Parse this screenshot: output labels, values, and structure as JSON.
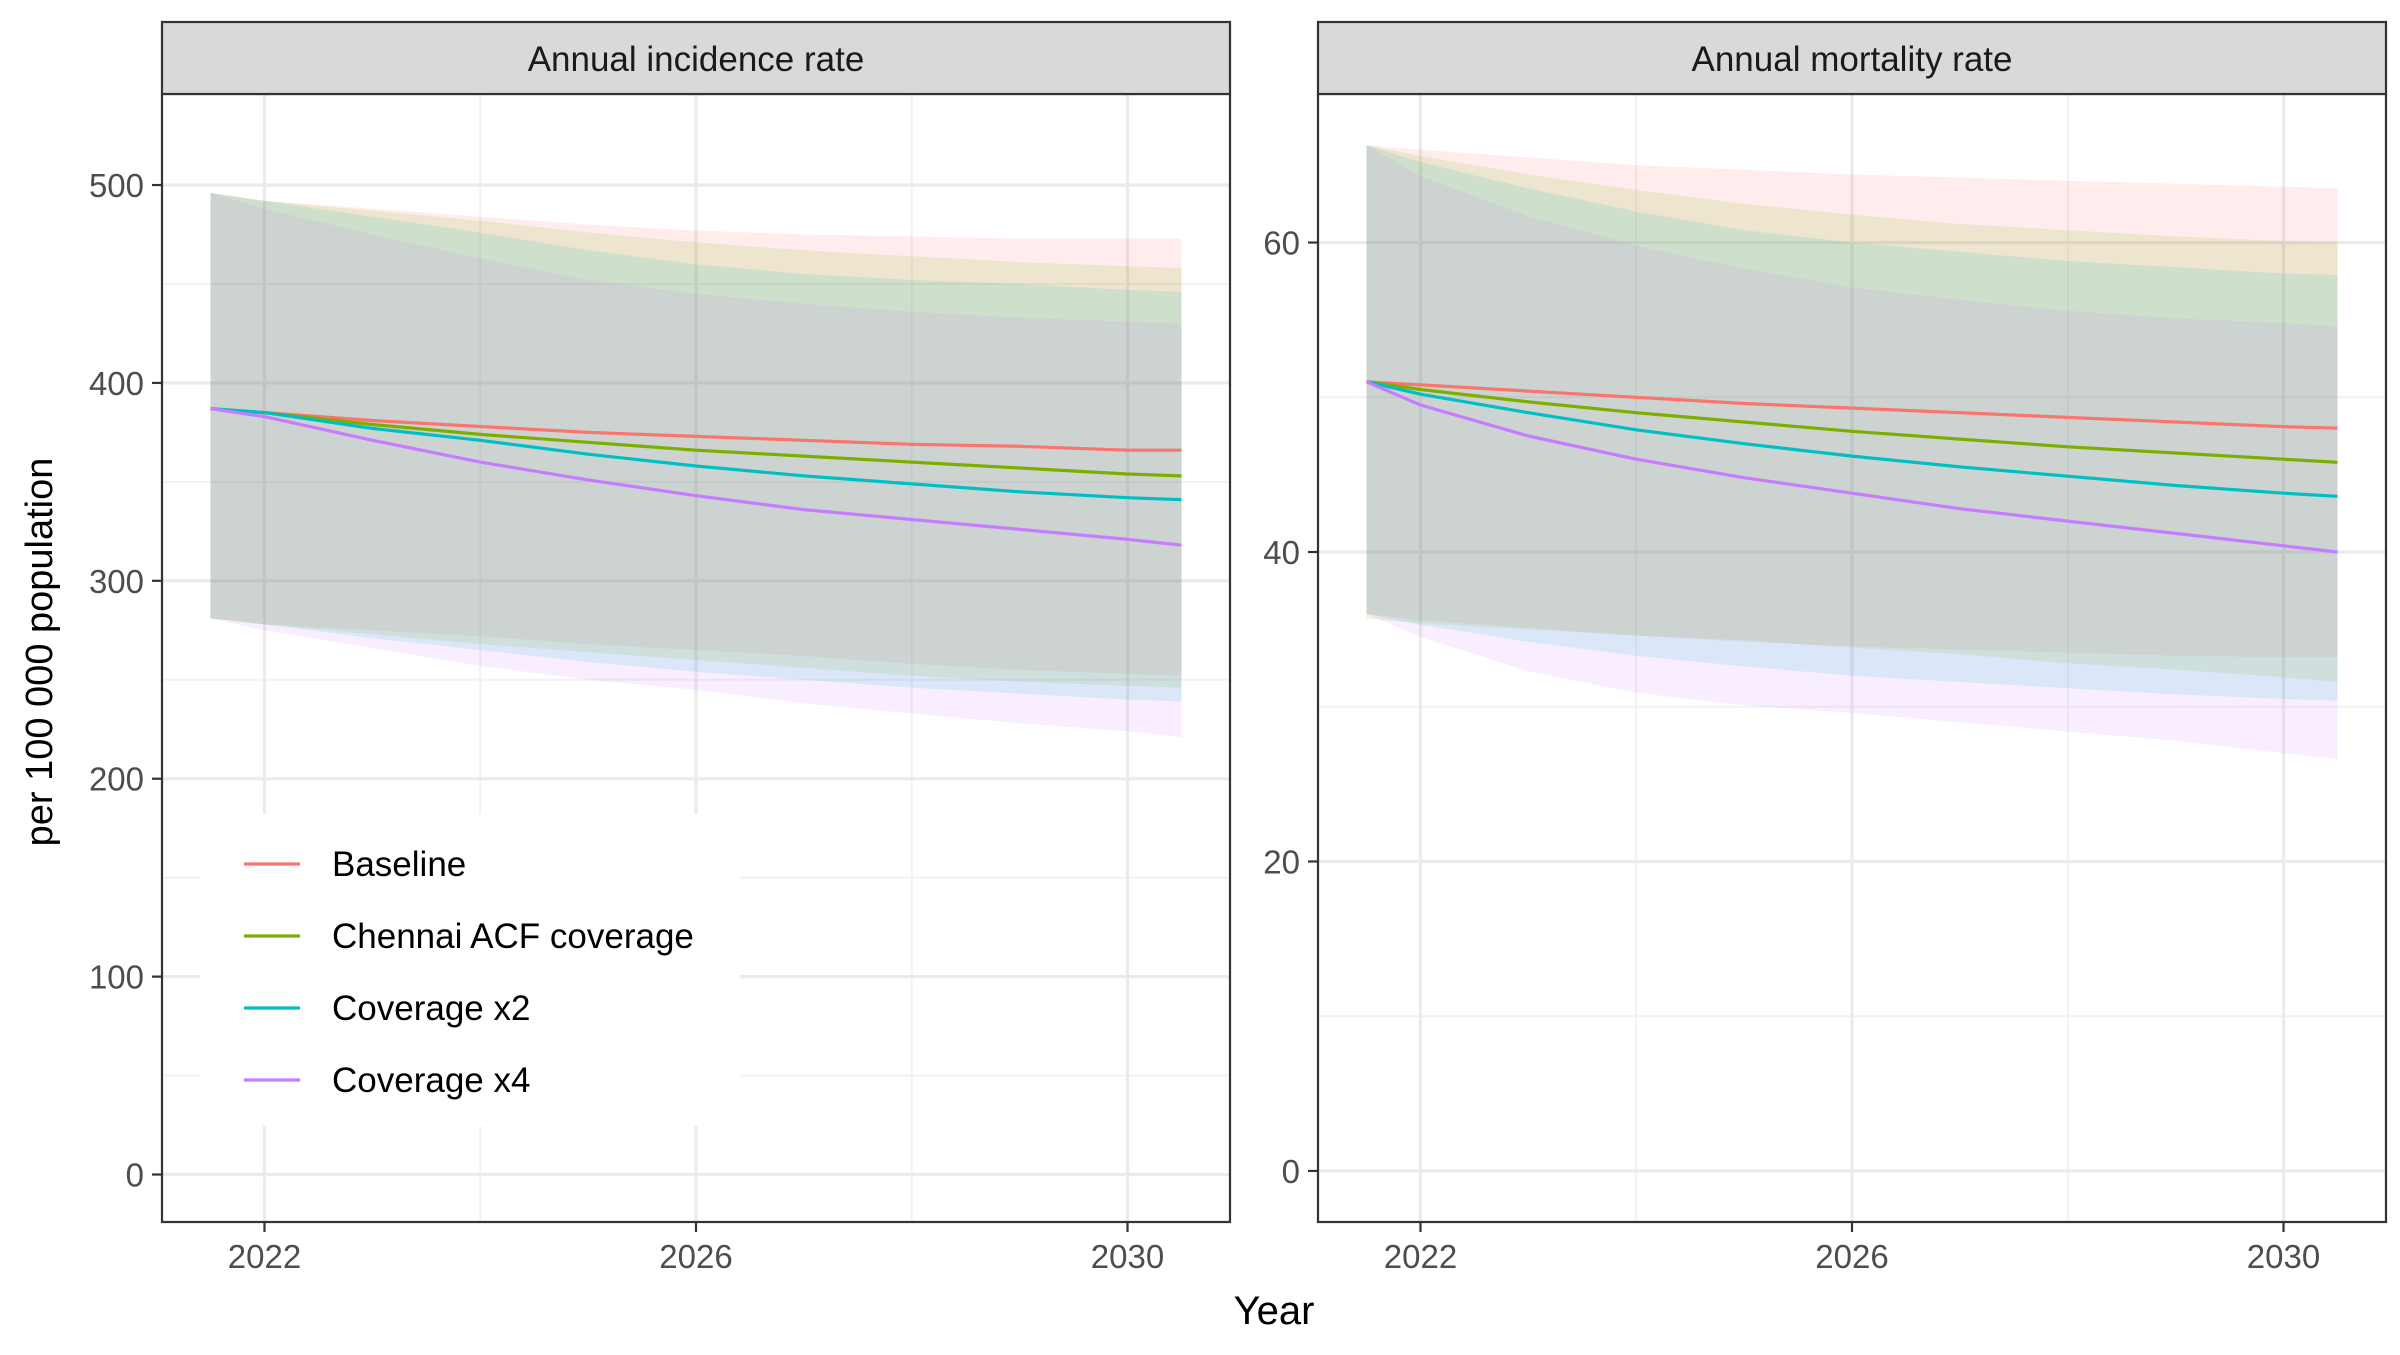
{
  "ylabel": "per 100 000 population",
  "xlabel": "Year",
  "chart_data": [
    {
      "type": "area",
      "title": "Annual incidence rate",
      "xticks": [
        2022,
        2026,
        2030
      ],
      "yticks": [
        0,
        100,
        200,
        300,
        400,
        500
      ],
      "xlim": [
        2021.05,
        2030.95
      ],
      "ylim": [
        -24,
        546
      ],
      "grid": true,
      "legend": "bottom-left, inside",
      "x": [
        2021.5,
        2022,
        2023,
        2024,
        2025,
        2026,
        2027,
        2028,
        2029,
        2030,
        2030.5
      ],
      "series": [
        {
          "name": "Baseline",
          "color": "#F8766D",
          "values": [
            387,
            385,
            381,
            378,
            375,
            373,
            371,
            369,
            368,
            366,
            366
          ],
          "upper": [
            496,
            492,
            488,
            484,
            480,
            477,
            475,
            474,
            473,
            473,
            473
          ],
          "lower": [
            281,
            278,
            275,
            272,
            268,
            265,
            262,
            258,
            255,
            253,
            252
          ]
        },
        {
          "name": "Chennai ACF coverage",
          "color": "#7CAE00",
          "values": [
            387,
            385,
            379,
            374,
            370,
            366,
            363,
            360,
            357,
            354,
            353
          ],
          "upper": [
            496,
            492,
            487,
            482,
            476,
            471,
            467,
            464,
            461,
            459,
            458
          ],
          "lower": [
            281,
            278,
            273,
            268,
            264,
            260,
            256,
            252,
            249,
            247,
            246
          ]
        },
        {
          "name": "Coverage x2",
          "color": "#00BFC4",
          "values": [
            387,
            385,
            377,
            371,
            364,
            358,
            353,
            349,
            345,
            342,
            341
          ],
          "upper": [
            496,
            492,
            484,
            476,
            467,
            460,
            455,
            452,
            450,
            447,
            446
          ],
          "lower": [
            281,
            278,
            271,
            265,
            259,
            254,
            250,
            246,
            243,
            240,
            239
          ]
        },
        {
          "name": "Coverage x4",
          "color": "#C77CFF",
          "values": [
            387,
            383,
            371,
            360,
            351,
            343,
            336,
            331,
            326,
            321,
            318
          ],
          "upper": [
            496,
            488,
            475,
            463,
            452,
            445,
            440,
            436,
            433,
            431,
            430
          ],
          "lower": [
            281,
            275,
            266,
            257,
            250,
            245,
            238,
            233,
            228,
            224,
            221
          ]
        }
      ]
    },
    {
      "type": "area",
      "title": "Annual mortality rate",
      "xticks": [
        2022,
        2026,
        2030
      ],
      "yticks": [
        0,
        20,
        40,
        60
      ],
      "xlim": [
        2021.05,
        2030.95
      ],
      "ylim": [
        -3.3,
        69.6
      ],
      "grid": true,
      "legend": "none",
      "x": [
        2021.5,
        2022,
        2023,
        2024,
        2025,
        2026,
        2027,
        2028,
        2029,
        2030,
        2030.5
      ],
      "series": [
        {
          "name": "Baseline",
          "color": "#F8766D",
          "values": [
            51,
            50.8,
            50.4,
            50,
            49.6,
            49.3,
            49,
            48.7,
            48.4,
            48.1,
            48
          ],
          "upper": [
            66.3,
            66,
            65.5,
            65,
            64.7,
            64.4,
            64.2,
            64,
            63.8,
            63.6,
            63.5
          ],
          "lower": [
            36,
            35.6,
            35.1,
            34.6,
            34.2,
            33.9,
            33.7,
            33.5,
            33.3,
            33.2,
            33.2
          ]
        },
        {
          "name": "Chennai ACF coverage",
          "color": "#7CAE00",
          "values": [
            51,
            50.5,
            49.7,
            49,
            48.4,
            47.8,
            47.3,
            46.8,
            46.4,
            46,
            45.8
          ],
          "upper": [
            66.3,
            65.6,
            64.4,
            63.4,
            62.5,
            61.8,
            61.2,
            60.8,
            60.4,
            60.1,
            60
          ]
        },
        {
          "name": "Coverage x2",
          "color": "#00BFC4",
          "values": [
            51,
            50.2,
            49,
            47.9,
            47,
            46.2,
            45.5,
            44.9,
            44.3,
            43.8,
            43.6
          ],
          "upper": [
            66.3,
            65.2,
            63.5,
            62,
            60.8,
            60,
            59.4,
            58.8,
            58.4,
            58,
            57.9
          ],
          "lower": [
            36,
            35.3,
            34.2,
            33.3,
            32.6,
            32,
            31.6,
            31.2,
            30.8,
            30.5,
            30.4
          ]
        },
        {
          "name": "Coverage x4",
          "color": "#C77CFF",
          "values": [
            51,
            49.5,
            47.5,
            46,
            44.8,
            43.8,
            42.8,
            42,
            41.2,
            40.4,
            40
          ],
          "upper": [
            66.3,
            64.3,
            61.7,
            59.8,
            58.3,
            57.1,
            56.3,
            55.6,
            55.1,
            54.8,
            54.6
          ],
          "lower": [
            36,
            34.5,
            32.3,
            30.9,
            30.1,
            29.6,
            29,
            28.4,
            27.8,
            27,
            26.6
          ]
        }
      ]
    }
  ]
}
